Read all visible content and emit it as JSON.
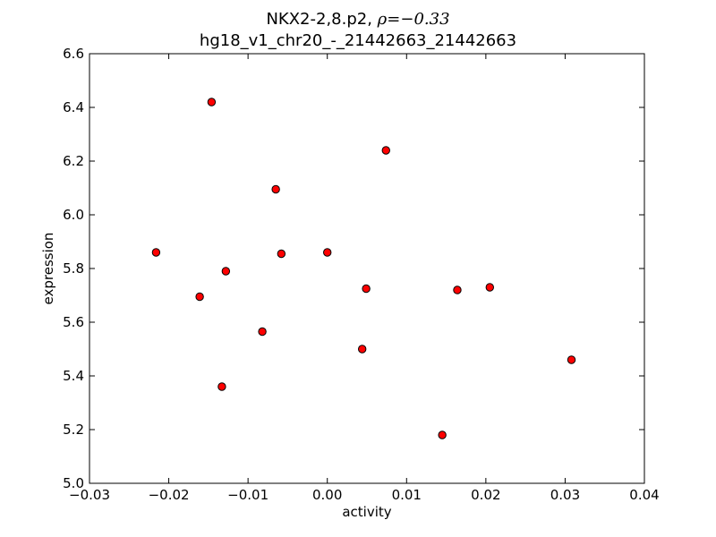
{
  "chart_data": {
    "type": "scatter",
    "title": {
      "prefix": "NKX2-2,8.p2, ",
      "rho_symbol": "ρ",
      "rho_equals": "=",
      "rho_value": "−0.33"
    },
    "subtitle": "hg18_v1_chr20_-_21442663_21442663",
    "xlabel": "activity",
    "ylabel": "expression",
    "xlim": [
      -0.03,
      0.04
    ],
    "ylim": [
      5.0,
      6.6
    ],
    "xticks": [
      -0.03,
      -0.02,
      -0.01,
      0.0,
      0.01,
      0.02,
      0.03,
      0.04
    ],
    "xtick_labels": [
      "−0.03",
      "−0.02",
      "−0.01",
      "0.00",
      "0.01",
      "0.02",
      "0.03",
      "0.04"
    ],
    "yticks": [
      5.0,
      5.2,
      5.4,
      5.6,
      5.8,
      6.0,
      6.2,
      6.4,
      6.6
    ],
    "ytick_labels": [
      "5.0",
      "5.2",
      "5.4",
      "5.6",
      "5.8",
      "6.0",
      "6.2",
      "6.4",
      "6.6"
    ],
    "grid": false,
    "marker_color": "#ff0000",
    "marker_edge_color": "#000000",
    "points": [
      {
        "x": -0.0146,
        "y": 6.42
      },
      {
        "x": 0.0074,
        "y": 6.24
      },
      {
        "x": -0.0065,
        "y": 6.095
      },
      {
        "x": -0.0216,
        "y": 5.86
      },
      {
        "x": -0.0058,
        "y": 5.855
      },
      {
        "x": 0.0,
        "y": 5.86
      },
      {
        "x": -0.0128,
        "y": 5.79
      },
      {
        "x": -0.0161,
        "y": 5.695
      },
      {
        "x": 0.0049,
        "y": 5.725
      },
      {
        "x": 0.0164,
        "y": 5.72
      },
      {
        "x": 0.0205,
        "y": 5.73
      },
      {
        "x": -0.0082,
        "y": 5.565
      },
      {
        "x": 0.0044,
        "y": 5.5
      },
      {
        "x": 0.0308,
        "y": 5.46
      },
      {
        "x": -0.0133,
        "y": 5.36
      },
      {
        "x": 0.0145,
        "y": 5.18
      }
    ]
  }
}
